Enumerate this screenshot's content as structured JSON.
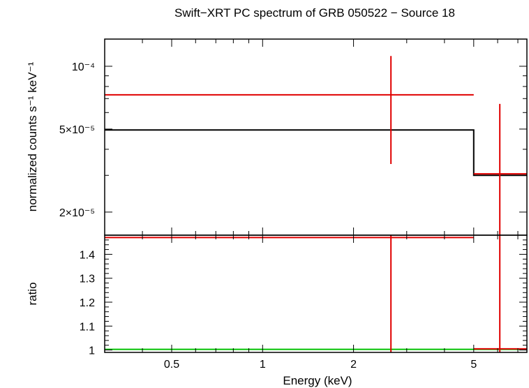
{
  "chart_data": {
    "type": "scatter",
    "title": "Swift−XRT PC spectrum of GRB 050522 − Source 18",
    "xlabel": "Energy (keV)",
    "x_scale": "log",
    "xlim": [
      0.3,
      7.5
    ],
    "x_ticks": [
      {
        "value": 0.5,
        "label": "0.5"
      },
      {
        "value": 1,
        "label": "1"
      },
      {
        "value": 2,
        "label": "2"
      },
      {
        "value": 5,
        "label": "5"
      }
    ],
    "panels": [
      {
        "name": "spectrum",
        "ylabel": "normalized counts s⁻¹ keV⁻¹",
        "y_scale": "log",
        "ylim": [
          1.55e-05,
          0.000135
        ],
        "y_ticks": [
          {
            "value": 2e-05,
            "label": "2×10⁻⁵"
          },
          {
            "value": 5e-05,
            "label": "5×10⁻⁵"
          },
          {
            "value": 0.0001,
            "label": "10⁻⁴"
          }
        ],
        "data_points": [
          {
            "x": 2.66,
            "x_low": 0.3,
            "x_high": 5.0,
            "y": 7.3e-05,
            "y_low": 3.4e-05,
            "y_high": 0.000112,
            "color": "#e00000"
          },
          {
            "x": 6.1,
            "x_low": 5.0,
            "x_high": 7.5,
            "y": 3.05e-05,
            "y_low": 1.55e-05,
            "y_high": 6.6e-05,
            "color": "#e00000"
          }
        ],
        "model": {
          "color": "#000000",
          "steps": [
            {
              "x_low": 0.3,
              "x_high": 5.0,
              "y": 4.95e-05
            },
            {
              "x_low": 5.0,
              "x_high": 7.5,
              "y": 3e-05
            }
          ]
        }
      },
      {
        "name": "ratio",
        "ylabel": "ratio",
        "y_scale": "linear",
        "ylim": [
          0.99,
          1.48
        ],
        "y_ticks": [
          {
            "value": 1,
            "label": "1"
          },
          {
            "value": 1.1,
            "label": "1.1"
          },
          {
            "value": 1.2,
            "label": "1.2"
          },
          {
            "value": 1.3,
            "label": "1.3"
          },
          {
            "value": 1.4,
            "label": "1.4"
          }
        ],
        "data_points": [
          {
            "x": 2.66,
            "x_low": 0.3,
            "x_high": 5.0,
            "y": 1.47,
            "y_low": 0.99,
            "y_high": 1.48,
            "color": "#e00000"
          },
          {
            "x": 6.1,
            "x_low": 5.0,
            "x_high": 7.5,
            "y": 1.005,
            "y_low": 0.99,
            "y_high": 1.48,
            "color": "#e00000"
          }
        ],
        "reference_line": {
          "y": 1.0,
          "color": "#00c000"
        }
      }
    ]
  }
}
